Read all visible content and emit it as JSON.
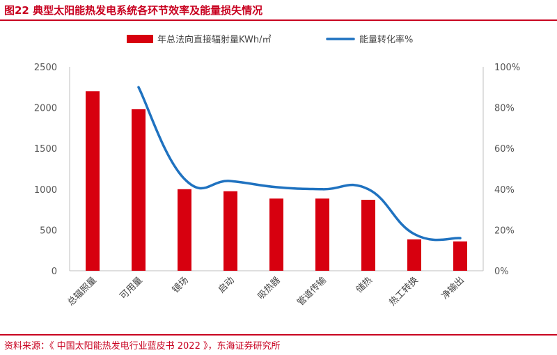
{
  "title": "图22  典型太阳能热发电系统各环节效率及能量损失情况",
  "source": "资料来源：《 中国太阳能热发电行业蓝皮书 2022 》，东海证券研究所",
  "chart_data": {
    "type": "bar",
    "categories": [
      "总辐照量",
      "可用量",
      "镜场",
      "启动",
      "吸热器",
      "管道传输",
      "储热",
      "热工转换",
      "净输出"
    ],
    "series": [
      {
        "name": "年总法向直接辐射量KWh/㎡",
        "type": "bar",
        "axis": "left",
        "color": "#d7000f",
        "values": [
          2200,
          1980,
          1000,
          975,
          885,
          885,
          870,
          385,
          360
        ]
      },
      {
        "name": "能量转化率%",
        "type": "line",
        "axis": "right",
        "color": "#1f72c0",
        "values": [
          null,
          90,
          45,
          44,
          41,
          40,
          40,
          18,
          16
        ]
      }
    ],
    "ylim": [
      0,
      2500
    ],
    "y_ticks": [
      "0",
      "500",
      "1000",
      "1500",
      "2000",
      "2500"
    ],
    "y2lim": [
      0,
      100
    ],
    "y2_ticks": [
      "0%",
      "20%",
      "40%",
      "60%",
      "80%",
      "100%"
    ],
    "legend": "top-center",
    "grid": false
  }
}
